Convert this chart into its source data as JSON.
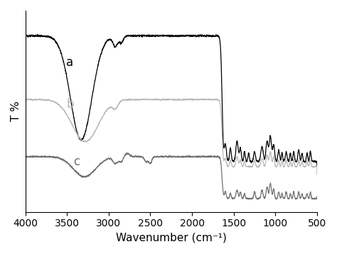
{
  "xlabel": "Wavenumber (cm⁻¹)",
  "ylabel": "T %",
  "xlim": [
    4000,
    500
  ],
  "curve_a_color": "#000000",
  "curve_b_color": "#b8b8b8",
  "curve_c_color": "#707070",
  "label_a": "a",
  "label_b": "b",
  "label_c": "c",
  "xticks": [
    4000,
    3500,
    3000,
    2500,
    2000,
    1500,
    1000,
    500
  ],
  "figsize": [
    4.74,
    3.58
  ],
  "dpi": 100
}
